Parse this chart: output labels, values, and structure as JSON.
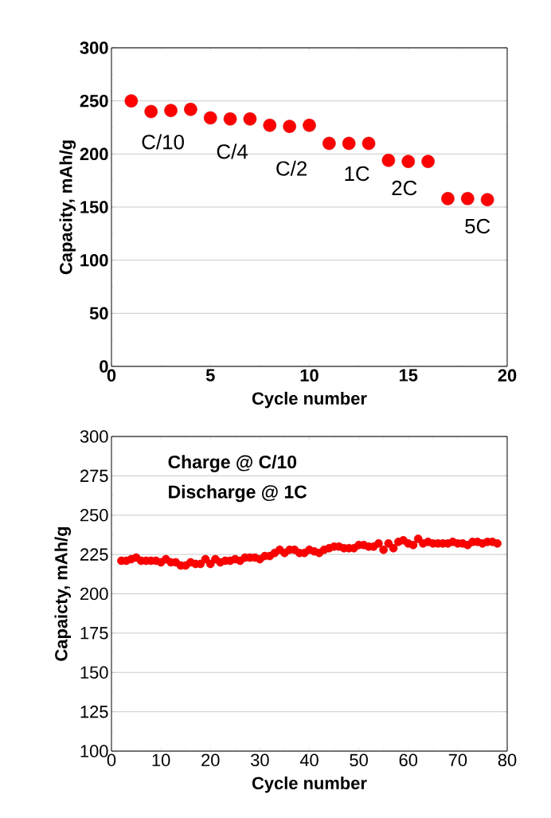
{
  "chart_data": [
    {
      "type": "scatter",
      "xlabel": "Cycle number",
      "ylabel": "Capacity, mAh/g",
      "color": "#ff0000",
      "marker": "circle",
      "grid": "y",
      "x": [
        1,
        2,
        3,
        4,
        5,
        6,
        7,
        8,
        9,
        10,
        11,
        12,
        13,
        14,
        15,
        16,
        17,
        18,
        19
      ],
      "values": [
        250,
        240,
        241,
        242,
        234,
        233,
        233,
        227,
        226,
        227,
        210,
        210,
        210,
        194,
        193,
        193,
        158,
        158,
        157
      ],
      "xlim": [
        0,
        20
      ],
      "ylim": [
        0,
        300
      ],
      "xticks": [
        0,
        5,
        10,
        15,
        20
      ],
      "yticks": [
        0,
        50,
        100,
        150,
        200,
        250,
        300
      ],
      "annotations": [
        "C/10",
        "C/4",
        "C/2",
        "1C",
        "2C",
        "5C"
      ]
    },
    {
      "type": "scatter",
      "xlabel": "Cycle number",
      "ylabel": "Capaicty, mAh/g",
      "color": "#ff0000",
      "marker": "circle",
      "grid": "y",
      "x": [
        2,
        3,
        4,
        5,
        6,
        7,
        8,
        9,
        10,
        11,
        12,
        13,
        14,
        15,
        16,
        17,
        18,
        19,
        20,
        21,
        22,
        23,
        24,
        25,
        26,
        27,
        28,
        29,
        30,
        31,
        32,
        33,
        34,
        35,
        36,
        37,
        38,
        39,
        40,
        41,
        42,
        43,
        44,
        45,
        46,
        47,
        48,
        49,
        50,
        51,
        52,
        53,
        54,
        55,
        56,
        57,
        58,
        59,
        60,
        61,
        62,
        63,
        64,
        65,
        66,
        67,
        68,
        69,
        70,
        71,
        72,
        73,
        74,
        75,
        76,
        77,
        78
      ],
      "values": [
        221,
        221,
        222,
        223,
        221,
        221,
        221,
        221,
        220,
        222,
        220,
        220,
        218,
        218,
        220,
        219,
        219,
        222,
        219,
        222,
        220,
        221,
        221,
        222,
        221,
        223,
        223,
        223,
        222,
        224,
        224,
        226,
        228,
        226,
        228,
        228,
        226,
        226,
        228,
        227,
        226,
        228,
        229,
        230,
        230,
        229,
        229,
        229,
        231,
        231,
        230,
        230,
        232,
        228,
        232,
        229,
        233,
        234,
        232,
        231,
        235,
        232,
        233,
        232,
        232,
        232,
        232,
        233,
        232,
        232,
        231,
        233,
        233,
        232,
        233,
        233,
        232
      ],
      "xlim": [
        0,
        80
      ],
      "ylim": [
        100,
        300
      ],
      "xticks": [
        0,
        10,
        20,
        30,
        40,
        50,
        60,
        70,
        80
      ],
      "yticks": [
        100,
        125,
        150,
        175,
        200,
        225,
        250,
        275,
        300
      ],
      "annotations": [
        "Charge @ C/10",
        "Discharge @ 1C"
      ]
    }
  ]
}
